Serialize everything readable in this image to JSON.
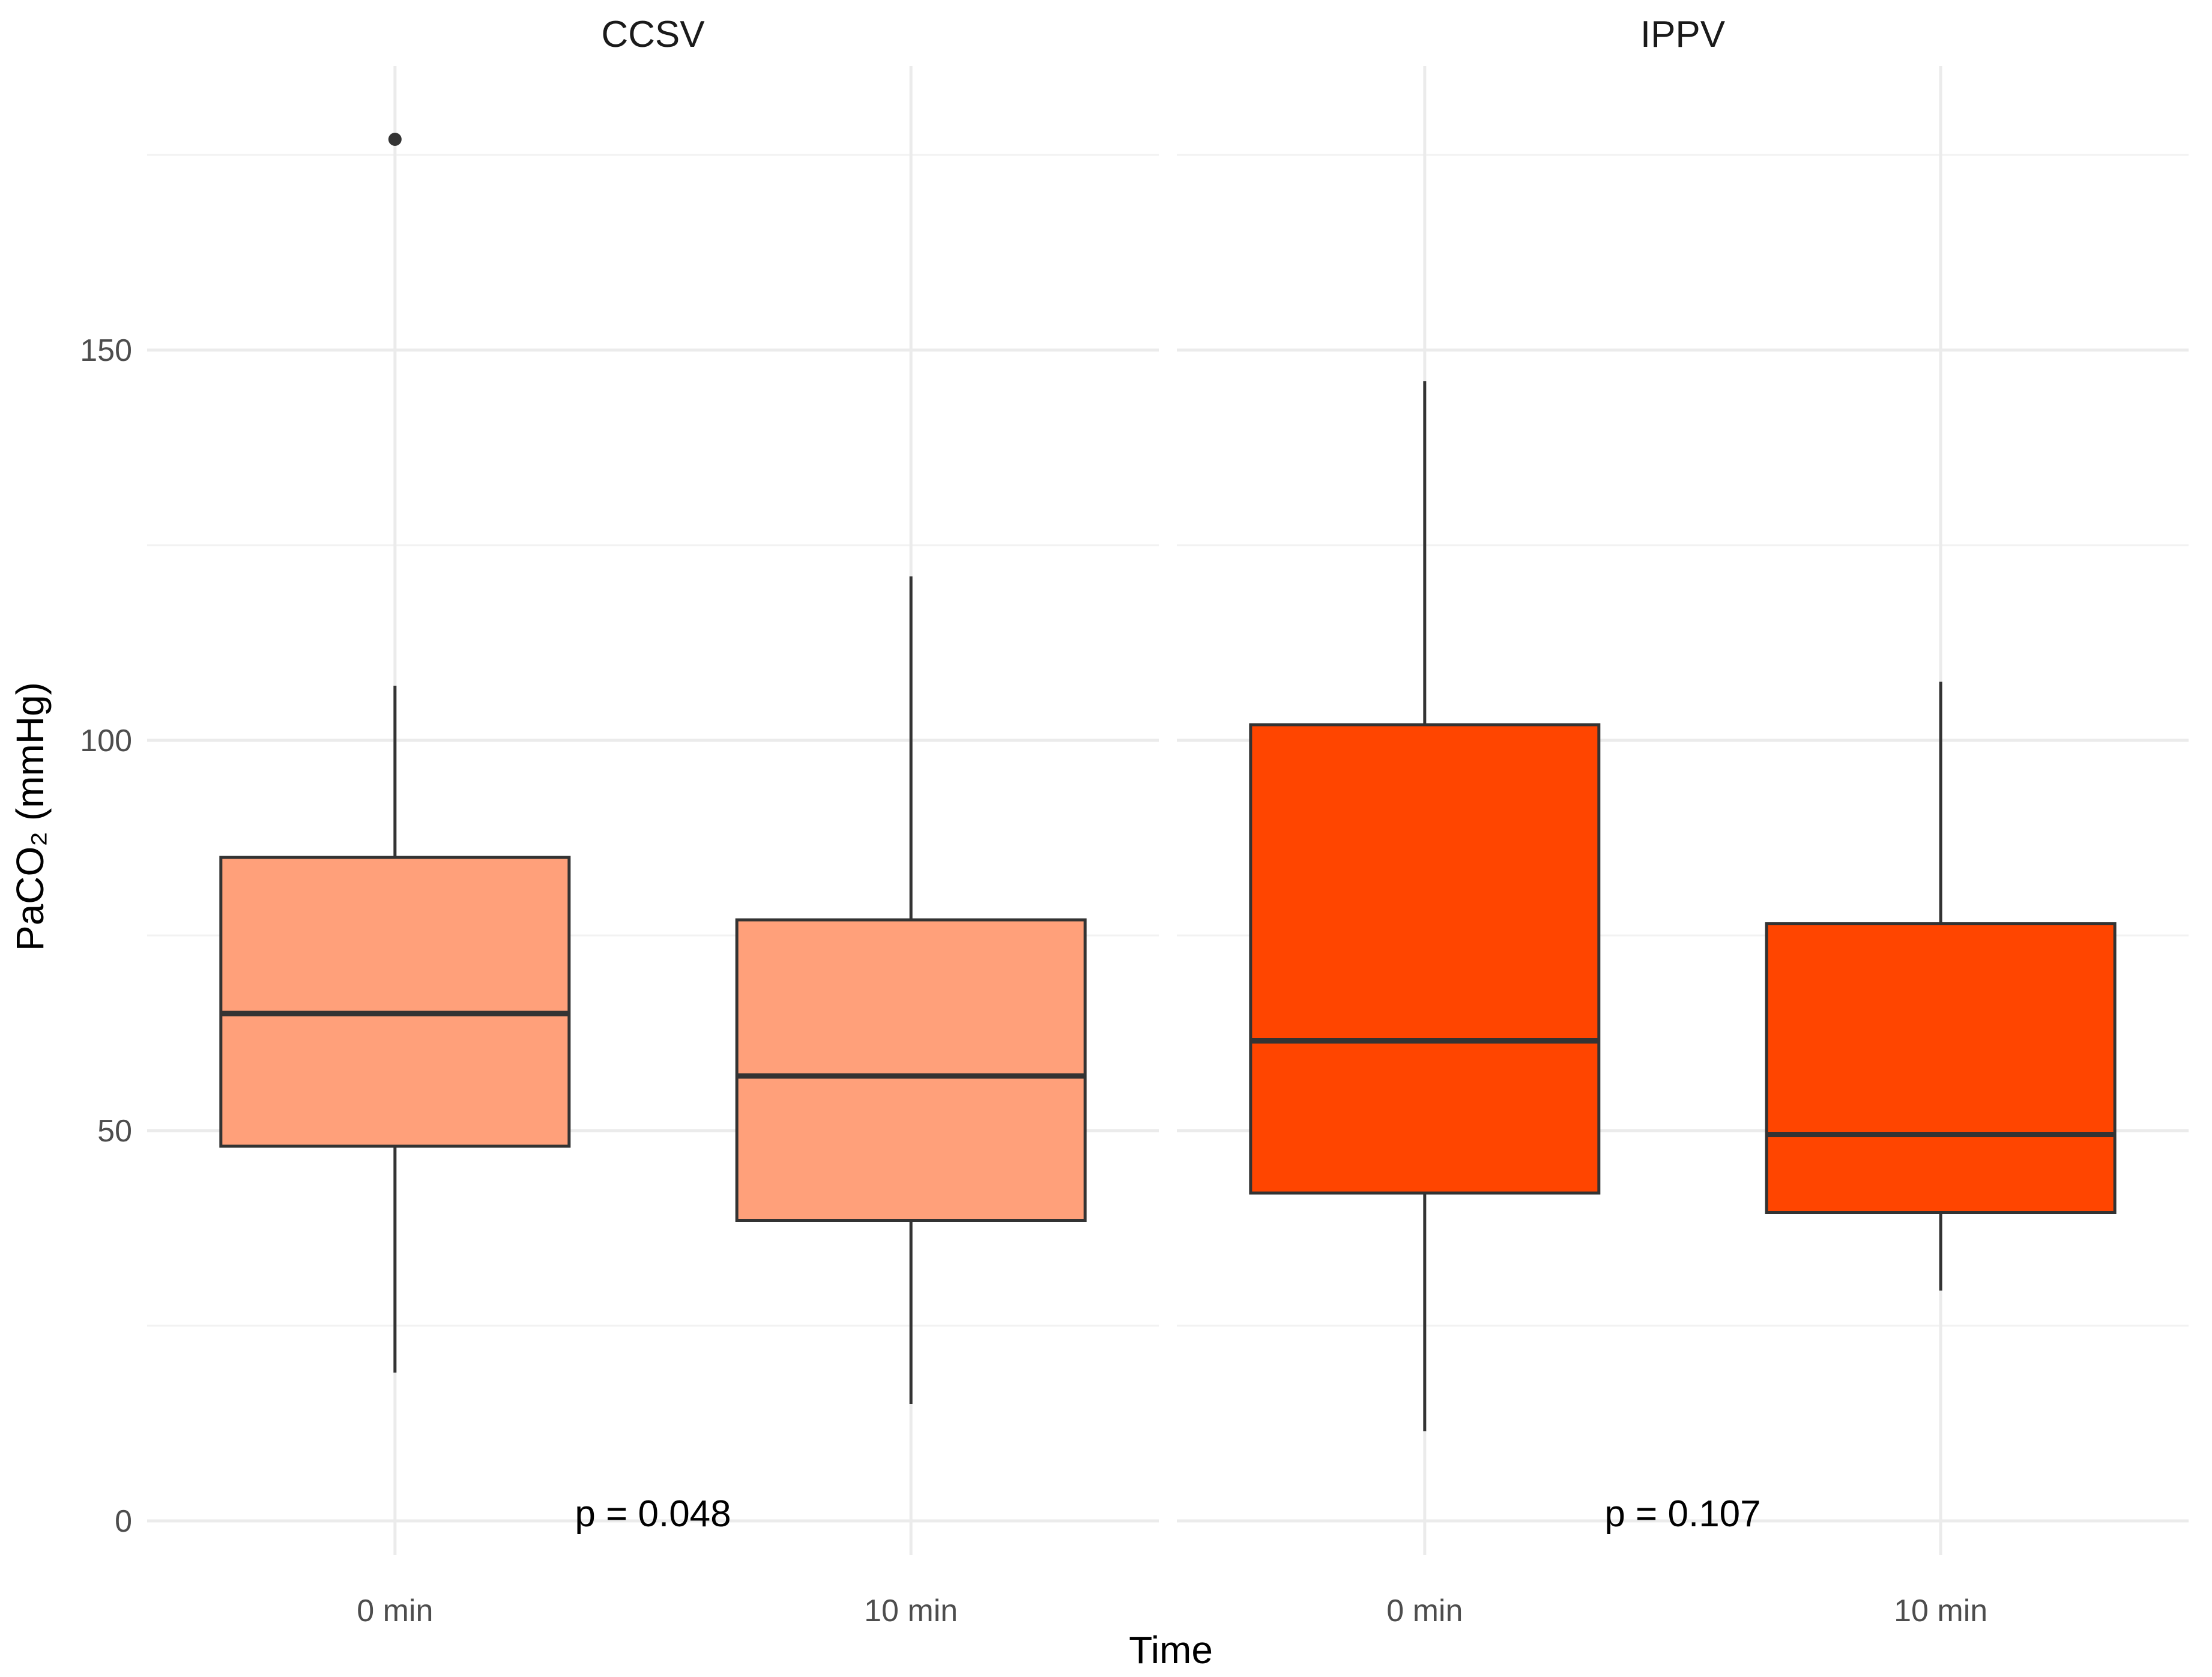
{
  "chart_data": {
    "type": "boxplot",
    "xlabel": "Time",
    "ylabel": "PaCO₂ (mmHg)",
    "ylim": [
      -5,
      187
    ],
    "yticks": [
      0,
      50,
      100,
      150
    ],
    "grid": true,
    "categories": [
      "0 min",
      "10 min"
    ],
    "panels": [
      {
        "name": "CCSV",
        "color": "#FFA07A",
        "annotation": "p = 0.048",
        "boxes": [
          {
            "x": "0 min",
            "min": 19,
            "q1": 48,
            "median": 65,
            "q3": 85,
            "max": 107,
            "outliers": [
              177
            ]
          },
          {
            "x": "10 min",
            "min": 15,
            "q1": 38.5,
            "median": 57,
            "q3": 77,
            "max": 121,
            "outliers": []
          }
        ]
      },
      {
        "name": "IPPV",
        "color": "#FF4500",
        "annotation": "p = 0.107",
        "boxes": [
          {
            "x": "0 min",
            "min": 11.5,
            "q1": 42,
            "median": 61.5,
            "q3": 102,
            "max": 146,
            "outliers": []
          },
          {
            "x": "10 min",
            "min": 29.5,
            "q1": 39.5,
            "median": 49.5,
            "q3": 76.5,
            "max": 107.5,
            "outliers": []
          }
        ]
      }
    ]
  }
}
